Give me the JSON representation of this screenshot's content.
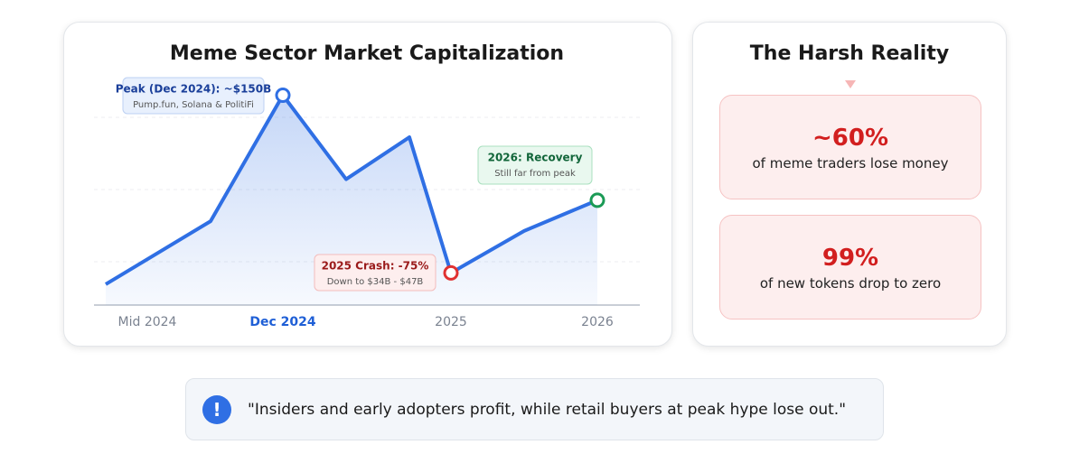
{
  "chart_data": {
    "type": "line",
    "title": "Meme Sector Market Capitalization",
    "categories": [
      null,
      "Mid 2024",
      "Dec 2024",
      null,
      null,
      "2025",
      null,
      "2026"
    ],
    "values": [
      33,
      72,
      150,
      98,
      124,
      40,
      66,
      85
    ],
    "color": "#2f6fe4",
    "annotations": [
      {
        "title": "Peak (Dec 2024): ~$150B",
        "text": "Pump.fun, Solana & PolitiFi"
      },
      {
        "title": "2025 Crash: -75%",
        "text": "Down to $34B - $47B"
      },
      {
        "title": "2026: Recovery",
        "text": "Still far from peak"
      }
    ]
  },
  "reality": {
    "title": "The Harsh Reality",
    "stats": [
      {
        "value": "~60%",
        "label": "of meme traders lose money"
      },
      {
        "value": "99%",
        "label": "of new tokens drop to zero"
      }
    ]
  },
  "quote": "\"Insiders and early adopters profit, while retail buyers at peak hype lose out.\""
}
